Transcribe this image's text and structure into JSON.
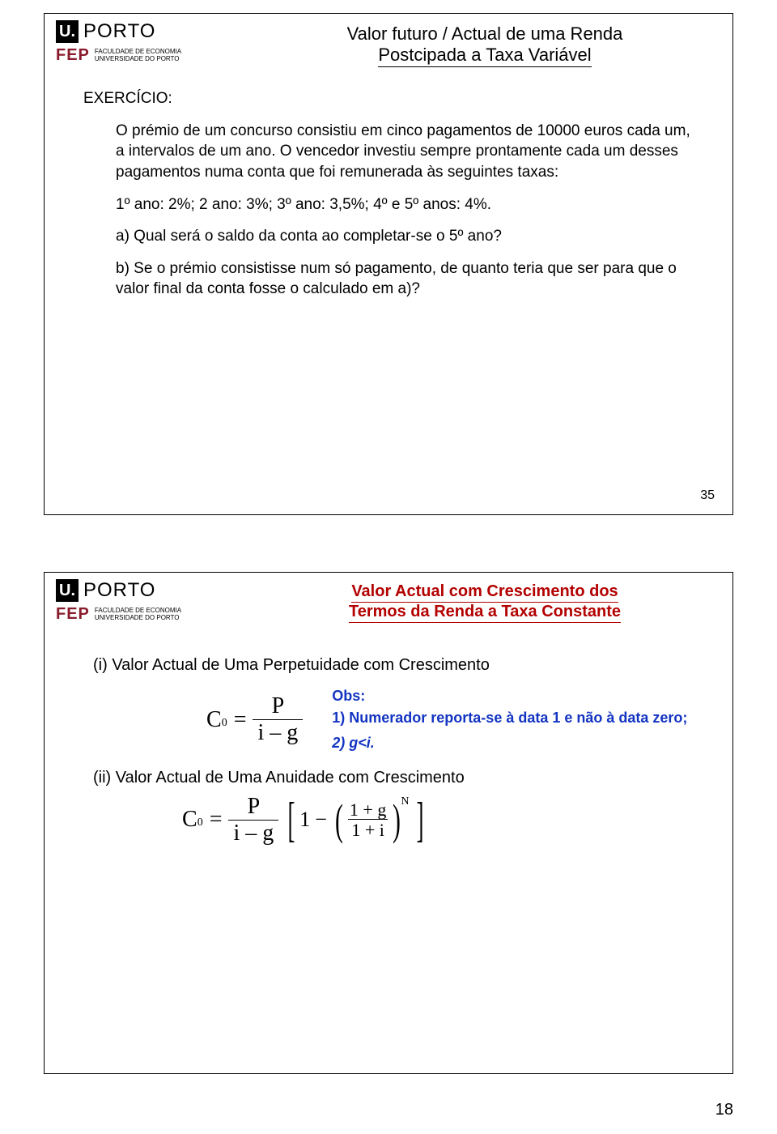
{
  "logo": {
    "u": "U.",
    "porto": "PORTO",
    "fep": "FEP",
    "fep_sub1": "FACULDADE DE ECONOMIA",
    "fep_sub2": "UNIVERSIDADE DO PORTO"
  },
  "slide1": {
    "title_line1": "Valor futuro / Actual de uma Renda",
    "title_line2": "Postcipada a Taxa Variável",
    "exercicio": "EXERCÍCIO:",
    "p1": "O prémio de um concurso consistiu em cinco pagamentos de 10000 euros cada um, a intervalos de um ano. O vencedor investiu sempre prontamente cada um desses pagamentos numa conta que foi remunerada às seguintes taxas:",
    "p2": "1º ano: 2%; 2 ano: 3%; 3º ano: 3,5%; 4º e 5º anos: 4%.",
    "p3": "a) Qual será o saldo da conta ao completar-se o 5º ano?",
    "p4": "b) Se o prémio consistisse num só pagamento, de quanto teria que ser para que o valor final da conta fosse o calculado em a)?",
    "page_num": "35"
  },
  "slide2": {
    "title_line1": "Valor Actual com Crescimento dos",
    "title_line2": "Termos da Renda a Taxa Constante",
    "heading_i": "(i) Valor Actual de Uma Perpetuidade com Crescimento",
    "heading_ii": "(ii) Valor Actual de Uma Anuidade com Crescimento",
    "obs_title": "Obs:",
    "obs_1": "1) Numerador reporta-se à data 1 e não à data zero;",
    "obs_2": "2) g<i.",
    "formula": {
      "C": "C",
      "zero": "0",
      "eq": "=",
      "P": "P",
      "i_minus_g": "i – g",
      "one": "1",
      "minus": "−",
      "one_plus_g": "1 + g",
      "one_plus_i": "1 + i",
      "N": "N"
    }
  },
  "page_footer": "18",
  "colors": {
    "red": "#b30000",
    "blue": "#1334c2",
    "fep": "#8a1b2c",
    "black": "#000000"
  }
}
